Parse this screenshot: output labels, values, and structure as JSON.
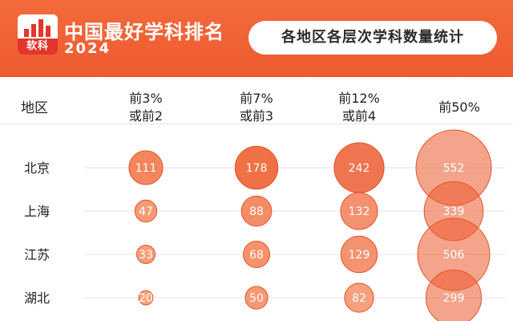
{
  "header": {
    "logo_text": "软科",
    "title": "中国最好学科排名",
    "year": "2024",
    "subtitle": "各地区各层次学科数量统计"
  },
  "table": {
    "row_header": "地区",
    "columns": [
      {
        "line1": "前3%",
        "line2": "或前2"
      },
      {
        "line1": "前7%",
        "line2": "或前3"
      },
      {
        "line1": "前12%",
        "line2": "或前4"
      },
      {
        "line1": "前50%",
        "line2": ""
      }
    ]
  },
  "colors": {
    "bubble_light": "#f8a37c",
    "bubble_dark": "#ec5a2e",
    "bubble_stroke": "#e4542b",
    "header_bg": "#ee5b30"
  },
  "chart_data": {
    "type": "bubble",
    "categories": [
      "北京",
      "上海",
      "江苏",
      "湖北"
    ],
    "series": [
      {
        "name": "前3%或前2",
        "values": [
          111,
          47,
          33,
          20
        ]
      },
      {
        "name": "前7%或前3",
        "values": [
          178,
          88,
          68,
          50
        ]
      },
      {
        "name": "前12%或前4",
        "values": [
          242,
          132,
          129,
          82
        ]
      },
      {
        "name": "前50%",
        "values": [
          552,
          339,
          506,
          299
        ]
      }
    ]
  }
}
